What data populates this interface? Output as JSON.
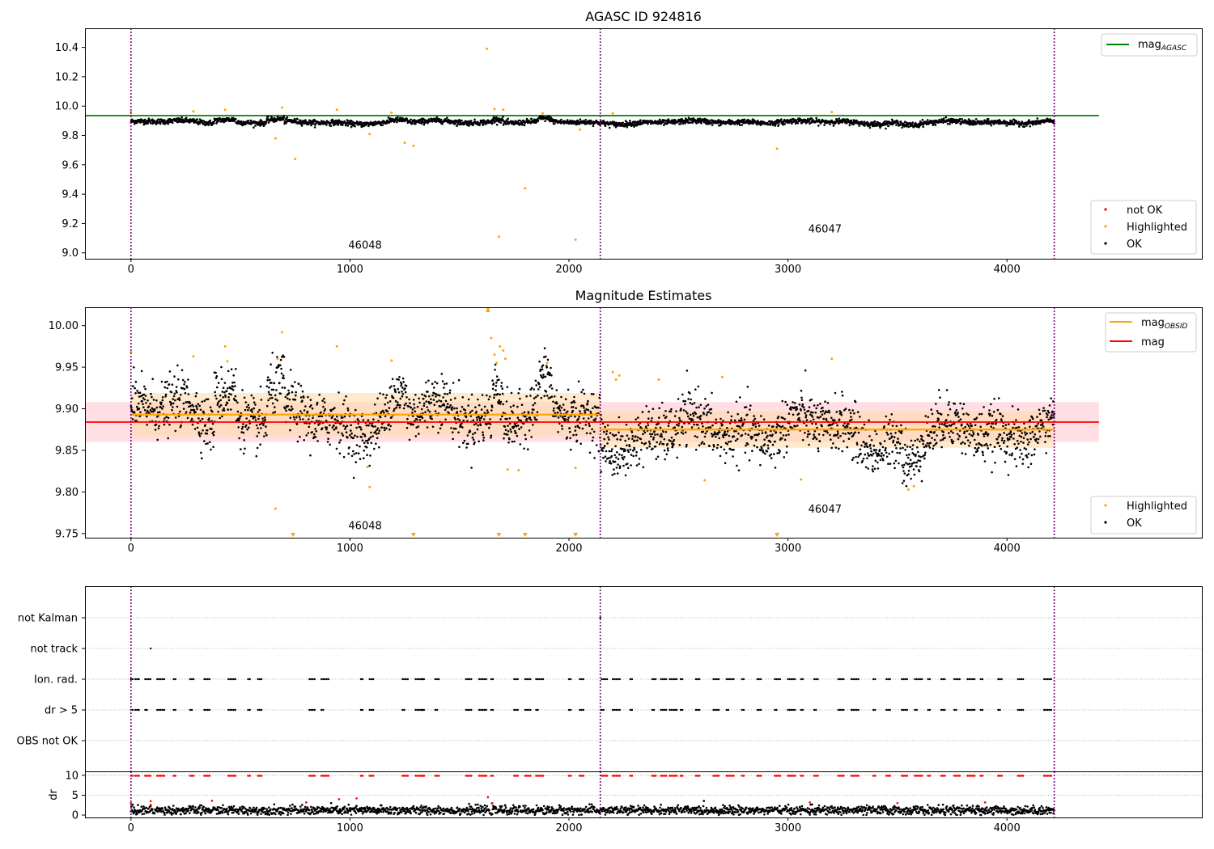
{
  "colors": {
    "ok": "#000000",
    "highlighted": "#ffa500",
    "not_ok": "#ff0000",
    "agasc_line": "#008000",
    "obsid_line": "#ffa500",
    "mag_line": "#ff0000",
    "obs_boundary": "#800080",
    "mag_band": "#ffc0c8",
    "obsid_band": "#ffd9a6",
    "grid": "#b0b0b0"
  },
  "chart_data": [
    {
      "type": "scatter",
      "title": "AGASC ID 924816",
      "xlim": [
        -210,
        4890
      ],
      "ylim": [
        8.96,
        10.53
      ],
      "xticks": [
        0,
        1000,
        2000,
        3000,
        4000
      ],
      "yticks": [
        9.0,
        9.2,
        9.4,
        9.6,
        9.8,
        10.0,
        10.2,
        10.4
      ],
      "ytick_labels": [
        "9.0",
        "9.2",
        "9.4",
        "9.6",
        "9.8",
        "10.0",
        "10.2",
        "10.4"
      ],
      "obs_boundaries": [
        0,
        2143,
        4216
      ],
      "obsid_labels": [
        {
          "text": "46048",
          "x": 1000,
          "y": 9.03
        },
        {
          "text": "46047",
          "x": 3100,
          "y": 9.14
        }
      ],
      "lines": [
        {
          "name": "mag",
          "subscript": "AGASC",
          "y": 9.935,
          "x_range": [
            -210,
            4420
          ],
          "color": "#008000"
        }
      ],
      "series": [
        {
          "name": "not OK",
          "color": "#ff0000",
          "baseline": 9.89,
          "spread": 0.012
        },
        {
          "name": "Highlighted",
          "color": "#ffa500",
          "baseline": 9.89,
          "spread": 0.012
        },
        {
          "name": "OK",
          "color": "#000000",
          "baseline": 9.89,
          "spread": 0.012
        }
      ],
      "highlighted_points": [
        [
          0,
          9.96
        ],
        [
          285,
          9.965
        ],
        [
          430,
          9.975
        ],
        [
          660,
          9.78
        ],
        [
          690,
          9.99
        ],
        [
          750,
          9.64
        ],
        [
          940,
          9.975
        ],
        [
          1090,
          9.81
        ],
        [
          1190,
          9.955
        ],
        [
          1250,
          9.75
        ],
        [
          1290,
          9.73
        ],
        [
          1625,
          10.39
        ],
        [
          1660,
          9.98
        ],
        [
          1680,
          9.11
        ],
        [
          1700,
          9.975
        ],
        [
          1800,
          9.44
        ],
        [
          1880,
          9.95
        ],
        [
          2030,
          9.09
        ],
        [
          2050,
          9.84
        ],
        [
          2200,
          9.95
        ],
        [
          2950,
          9.71
        ],
        [
          3200,
          9.96
        ]
      ],
      "legends": [
        {
          "placement": "upper-right",
          "entries": [
            "mag_AGASC"
          ]
        },
        {
          "placement": "lower-right",
          "entries": [
            "not OK",
            "Highlighted",
            "OK"
          ]
        }
      ]
    },
    {
      "type": "scatter",
      "title": "Magnitude Estimates",
      "xlim": [
        -210,
        4890
      ],
      "ylim": [
        9.745,
        10.022
      ],
      "xticks": [
        0,
        1000,
        2000,
        3000,
        4000
      ],
      "yticks": [
        9.75,
        9.8,
        9.85,
        9.9,
        9.95,
        10.0
      ],
      "ytick_labels": [
        "9.75",
        "9.80",
        "9.85",
        "9.90",
        "9.95",
        "10.00"
      ],
      "obs_boundaries": [
        0,
        2143,
        4216
      ],
      "obsid_labels": [
        {
          "text": "46048",
          "x": 1000,
          "y": 9.755
        },
        {
          "text": "46047",
          "x": 3100,
          "y": 9.775
        }
      ],
      "lines": [
        {
          "name": "mag",
          "subscript": "OBSID",
          "y": 9.893,
          "x_range": [
            0,
            2143
          ],
          "color": "#ffa500",
          "band": 0.026
        },
        {
          "name": "mag",
          "subscript": "OBSID",
          "y": 9.875,
          "x_range": [
            2143,
            4216
          ],
          "color": "#ffa500",
          "band": 0.022
        },
        {
          "name": "mag",
          "subscript": "",
          "y": 9.884,
          "x_range": [
            -210,
            4420
          ],
          "color": "#ff0000",
          "band": 0.024
        }
      ],
      "highlighted_points": [
        [
          0,
          9.968
        ],
        [
          285,
          9.963
        ],
        [
          430,
          9.975
        ],
        [
          440,
          9.957
        ],
        [
          660,
          9.78
        ],
        [
          690,
          9.992
        ],
        [
          670,
          9.96
        ],
        [
          940,
          9.975
        ],
        [
          1090,
          9.806
        ],
        [
          1080,
          9.83
        ],
        [
          1190,
          9.958
        ],
        [
          1630,
          10.02
        ],
        [
          1645,
          9.985
        ],
        [
          1660,
          9.965
        ],
        [
          1670,
          9.955
        ],
        [
          1685,
          9.975
        ],
        [
          1700,
          9.97
        ],
        [
          1710,
          9.96
        ],
        [
          1720,
          9.827
        ],
        [
          1770,
          9.826
        ],
        [
          1900,
          9.955
        ],
        [
          2030,
          9.829
        ],
        [
          2200,
          9.944
        ],
        [
          2215,
          9.935
        ],
        [
          2230,
          9.94
        ],
        [
          2410,
          9.935
        ],
        [
          2620,
          9.814
        ],
        [
          2700,
          9.938
        ],
        [
          3060,
          9.815
        ],
        [
          3200,
          9.96
        ],
        [
          3550,
          9.803
        ],
        [
          3575,
          9.807
        ]
      ],
      "below_range_markers": [
        740,
        1290,
        1680,
        1800,
        2030,
        2950
      ],
      "above_range_markers": [
        1630
      ],
      "legends": [
        {
          "placement": "upper-right",
          "entries": [
            "mag_OBSID",
            "mag"
          ]
        },
        {
          "placement": "lower-right",
          "entries": [
            "Highlighted",
            "OK"
          ]
        }
      ]
    },
    {
      "type": "scatter",
      "title": "",
      "xlim": [
        -210,
        4890
      ],
      "categories": [
        "not Kalman",
        "not track",
        "Ion. rad.",
        "dr > 5",
        "OBS not OK"
      ],
      "flag_markers": {
        "not Kalman": [
          2143
        ],
        "not track": [
          90
        ],
        "Ion. rad.": "periodic",
        "dr > 5": "periodic"
      },
      "obs_boundaries": [
        0,
        2143,
        4216
      ]
    },
    {
      "type": "scatter",
      "title": "",
      "xlim": [
        -210,
        4890
      ],
      "ylim": [
        -0.6,
        11
      ],
      "xticks": [
        0,
        1000,
        2000,
        3000,
        4000
      ],
      "yticks": [
        0,
        5,
        10
      ],
      "ytick_labels": [
        "0",
        "5",
        "10"
      ],
      "ylabel": "dr",
      "obs_boundaries": [
        0,
        2143,
        4216
      ]
    }
  ]
}
